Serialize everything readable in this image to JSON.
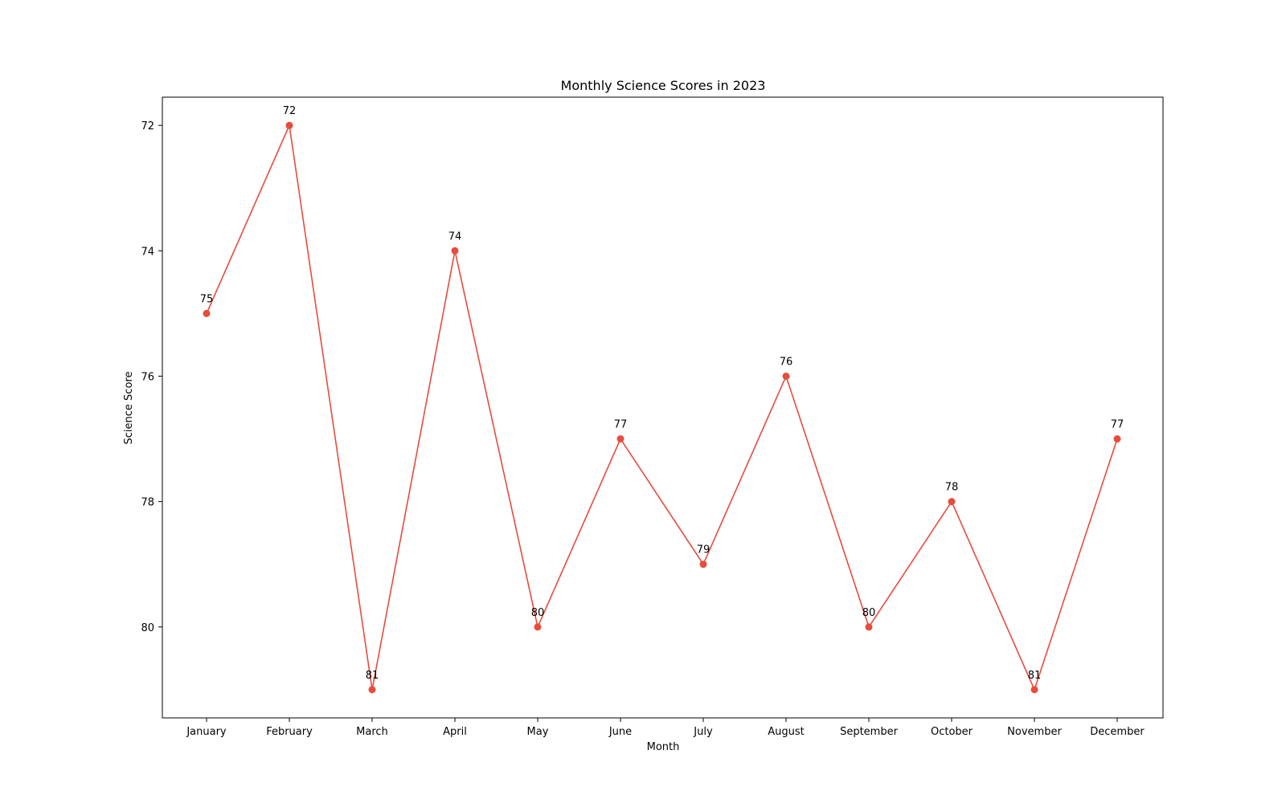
{
  "chart_data": {
    "type": "line",
    "title": "Monthly Science Scores in 2023",
    "xlabel": "Month",
    "ylabel": "Science Score",
    "categories": [
      "January",
      "February",
      "March",
      "April",
      "May",
      "June",
      "July",
      "August",
      "September",
      "October",
      "November",
      "December"
    ],
    "series": [
      {
        "values": [
          75,
          72,
          81,
          74,
          80,
          77,
          79,
          76,
          80,
          78,
          81,
          77
        ],
        "color": "#e74c3c"
      }
    ],
    "y_ticks": [
      72,
      74,
      76,
      78,
      80
    ],
    "ylim": [
      81.45,
      71.55
    ],
    "y_inverted": true,
    "grid": false,
    "marker": "circle",
    "show_data_labels": true
  }
}
